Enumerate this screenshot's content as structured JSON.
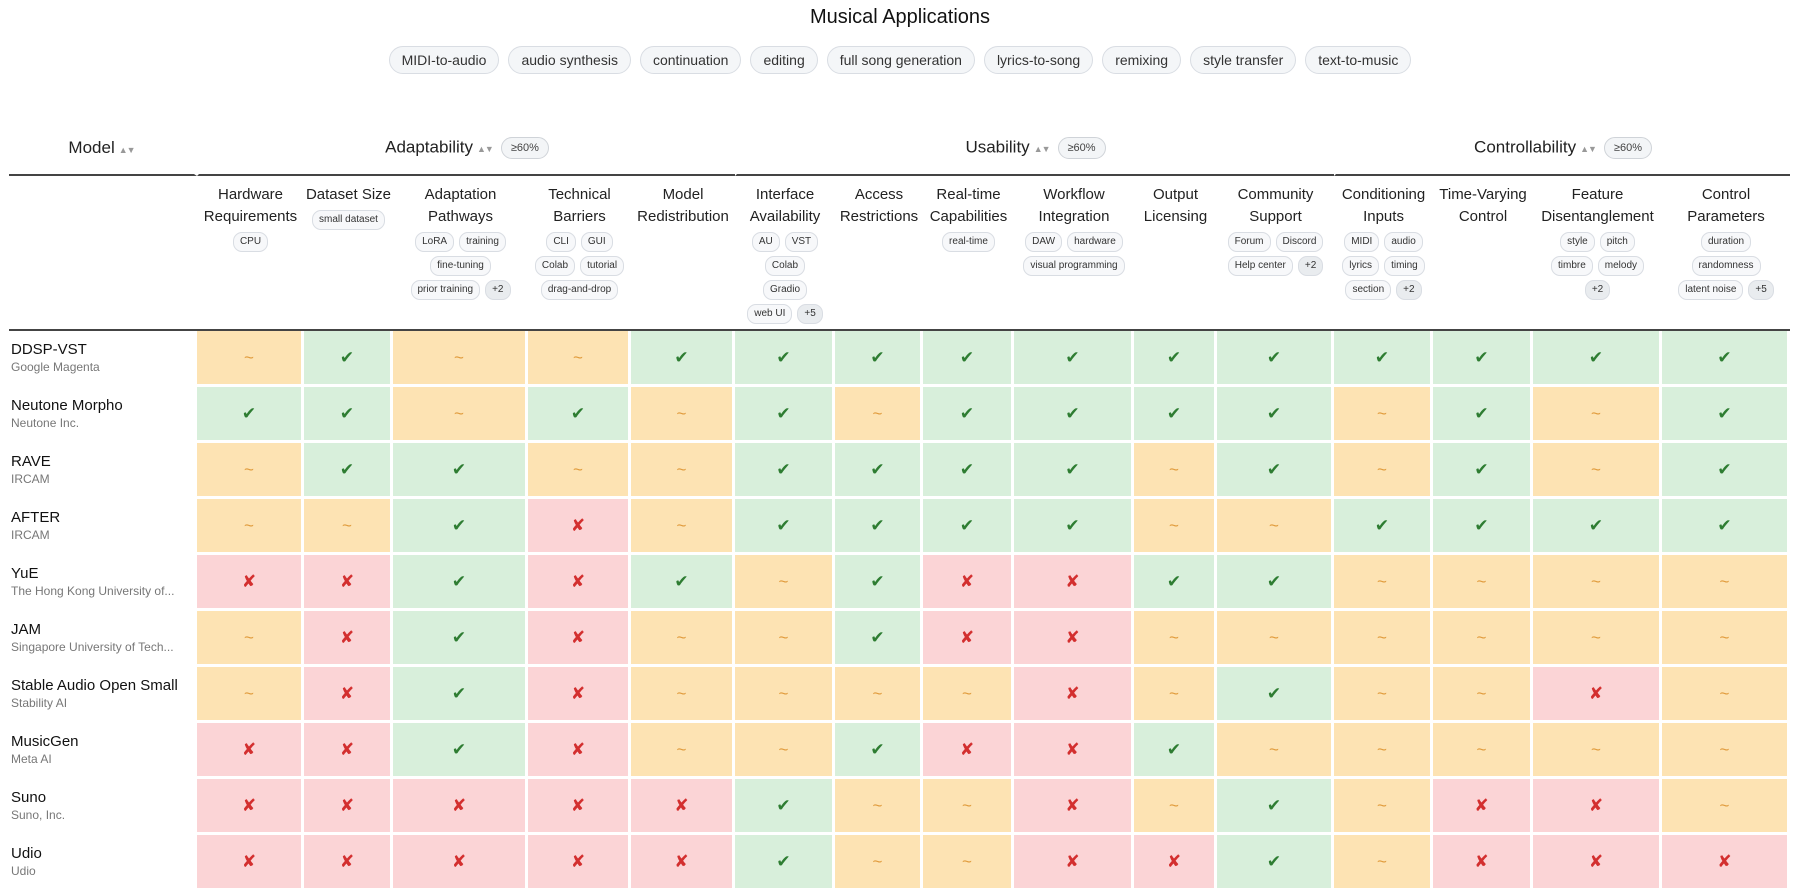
{
  "title": "Musical Applications",
  "filters": [
    "MIDI-to-audio",
    "audio synthesis",
    "continuation",
    "editing",
    "full song generation",
    "lyrics-to-song",
    "remixing",
    "style transfer",
    "text-to-music"
  ],
  "sort_glyph": "▲▼",
  "symbols": {
    "y": "✔",
    "p": "~",
    "n": "✘"
  },
  "colors": {
    "yes_bg": "#d8efdb",
    "partial_bg": "#fde3b3",
    "no_bg": "#fbd4d6",
    "yes": "#2e7d32",
    "partial": "#e09a3a",
    "no": "#d32f2f"
  },
  "groups": [
    {
      "label": "Model",
      "pill": ""
    },
    {
      "label": "Adaptability",
      "pill": "≥60%"
    },
    {
      "label": "Usability",
      "pill": "≥60%"
    },
    {
      "label": "Controllability",
      "pill": "≥60%"
    }
  ],
  "columns": [
    {
      "label": "Hardware Requirements",
      "tags": [
        "CPU"
      ]
    },
    {
      "label": "Dataset Size",
      "tags": [
        "small dataset"
      ]
    },
    {
      "label": "Adaptation Pathways",
      "tags": [
        "LoRA",
        "training",
        "fine-tuning",
        "prior training",
        "+2"
      ]
    },
    {
      "label": "Technical Barriers",
      "tags": [
        "CLI",
        "GUI",
        "Colab",
        "tutorial",
        "drag-and-drop"
      ]
    },
    {
      "label": "Model Redistribution",
      "tags": []
    },
    {
      "label": "Interface Availability",
      "tags": [
        "AU",
        "VST",
        "Colab",
        "Gradio",
        "web UI",
        "+5"
      ]
    },
    {
      "label": "Access Restrictions",
      "tags": []
    },
    {
      "label": "Real-time Capabilities",
      "tags": [
        "real-time"
      ]
    },
    {
      "label": "Workflow Integration",
      "tags": [
        "DAW",
        "hardware",
        "visual programming"
      ]
    },
    {
      "label": "Output Licensing",
      "tags": []
    },
    {
      "label": "Community Support",
      "tags": [
        "Forum",
        "Discord",
        "Help center",
        "+2"
      ]
    },
    {
      "label": "Conditioning Inputs",
      "tags": [
        "MIDI",
        "audio",
        "lyrics",
        "timing",
        "section",
        "+2"
      ]
    },
    {
      "label": "Time-Varying Control",
      "tags": []
    },
    {
      "label": "Feature Disentanglement",
      "tags": [
        "style",
        "pitch",
        "timbre",
        "melody",
        "+2"
      ]
    },
    {
      "label": "Control Parameters",
      "tags": [
        "duration",
        "randomness",
        "latent noise",
        "+5"
      ]
    }
  ],
  "rows": [
    {
      "name": "DDSP-VST",
      "org": "Google Magenta",
      "cells": [
        "p",
        "y",
        "p",
        "p",
        "y",
        "y",
        "y",
        "y",
        "y",
        "y",
        "y",
        "y",
        "y",
        "y",
        "y"
      ]
    },
    {
      "name": "Neutone Morpho",
      "org": "Neutone Inc.",
      "cells": [
        "y",
        "y",
        "p",
        "y",
        "p",
        "y",
        "p",
        "y",
        "y",
        "y",
        "y",
        "p",
        "y",
        "p",
        "y"
      ]
    },
    {
      "name": "RAVE",
      "org": "IRCAM",
      "cells": [
        "p",
        "y",
        "y",
        "p",
        "p",
        "y",
        "y",
        "y",
        "y",
        "p",
        "y",
        "p",
        "y",
        "p",
        "y"
      ]
    },
    {
      "name": "AFTER",
      "org": "IRCAM",
      "cells": [
        "p",
        "p",
        "y",
        "n",
        "p",
        "y",
        "y",
        "y",
        "y",
        "p",
        "p",
        "y",
        "y",
        "y",
        "y"
      ]
    },
    {
      "name": "YuE",
      "org": "The Hong Kong University of...",
      "cells": [
        "n",
        "n",
        "y",
        "n",
        "y",
        "p",
        "y",
        "n",
        "n",
        "y",
        "y",
        "p",
        "p",
        "p",
        "p"
      ]
    },
    {
      "name": "JAM",
      "org": "Singapore University of Tech...",
      "cells": [
        "p",
        "n",
        "y",
        "n",
        "p",
        "p",
        "y",
        "n",
        "n",
        "p",
        "p",
        "p",
        "p",
        "p",
        "p"
      ]
    },
    {
      "name": "Stable Audio Open Small",
      "org": "Stability AI",
      "cells": [
        "p",
        "n",
        "y",
        "n",
        "p",
        "p",
        "p",
        "p",
        "n",
        "p",
        "y",
        "p",
        "p",
        "n",
        "p"
      ]
    },
    {
      "name": "MusicGen",
      "org": "Meta AI",
      "cells": [
        "n",
        "n",
        "y",
        "n",
        "p",
        "p",
        "y",
        "n",
        "n",
        "y",
        "p",
        "p",
        "p",
        "p",
        "p"
      ]
    },
    {
      "name": "Suno",
      "org": "Suno, Inc.",
      "cells": [
        "n",
        "n",
        "n",
        "n",
        "n",
        "y",
        "p",
        "p",
        "n",
        "p",
        "y",
        "p",
        "n",
        "n",
        "p"
      ]
    },
    {
      "name": "Udio",
      "org": "Udio",
      "cells": [
        "n",
        "n",
        "n",
        "n",
        "n",
        "y",
        "p",
        "p",
        "n",
        "n",
        "y",
        "p",
        "n",
        "n",
        "n"
      ]
    }
  ]
}
